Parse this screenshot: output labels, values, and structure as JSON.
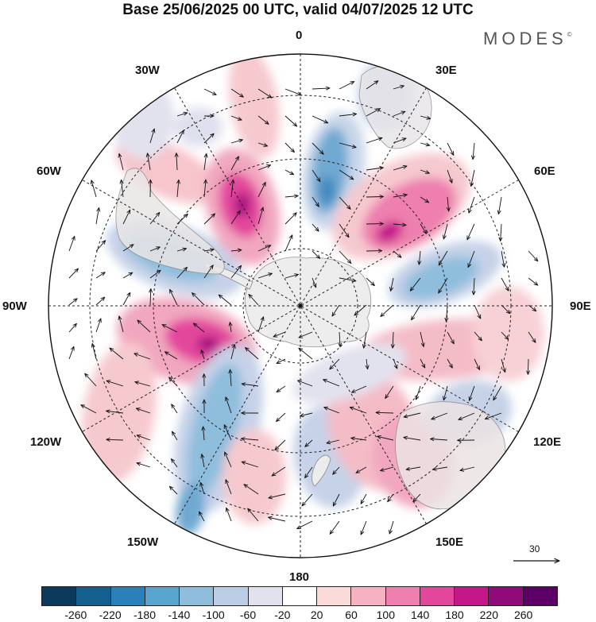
{
  "title": "Base 25/06/2025 00 UTC, valid 04/07/2025 12 UTC",
  "brand": "MODES",
  "brand_mark": "©",
  "longitude_labels": {
    "lon_0": "0",
    "lon_30e": "30E",
    "lon_60e": "60E",
    "lon_90e": "90E",
    "lon_120e": "120E",
    "lon_150e": "150E",
    "lon_180": "180",
    "lon_150w": "150W",
    "lon_120w": "120W",
    "lon_90w": "90W",
    "lon_60w": "60W",
    "lon_30w": "30W"
  },
  "reference_vector_label": "30",
  "colorbar": {
    "colors": [
      "#0b3b5c",
      "#13608f",
      "#2a80b8",
      "#5aa5cf",
      "#8fbedd",
      "#bccde6",
      "#e2e2ef",
      "#ffffff",
      "#fbdada",
      "#f6b2c0",
      "#ee7fae",
      "#e3479c",
      "#c4178a",
      "#900a7a",
      "#5c0068"
    ],
    "ticks": [
      "-260",
      "-220",
      "-180",
      "-140",
      "-100",
      "-60",
      "-20",
      "20",
      "60",
      "100",
      "140",
      "180",
      "220",
      "260"
    ]
  }
}
